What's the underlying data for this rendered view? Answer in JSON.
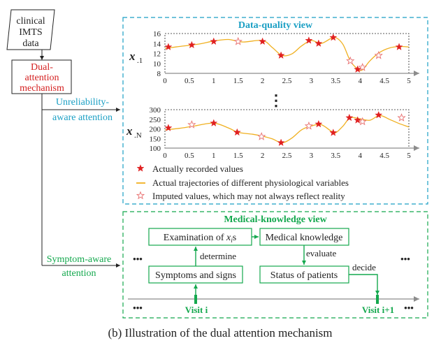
{
  "input": {
    "line1": "clinical",
    "line2": "IMTS",
    "line3": "data"
  },
  "mechanism": {
    "line1": "Dual-",
    "line2": "attention",
    "line3": "mechanism"
  },
  "unreliability": {
    "line1": "Unreliability-",
    "line2": "aware attention"
  },
  "symptom": {
    "line1": "Symptom-aware",
    "line2": "attention"
  },
  "dq_view": {
    "title": "Data-quality view",
    "var1_label": "x",
    "var1_sub": ".1",
    "varN_label": "x",
    "varN_sub": ".N",
    "dots": "⋮"
  },
  "legend": {
    "recorded": "Actually recorded values",
    "trajectory": "Actual trajectories of different physiological variables",
    "imputed": "Imputed values, which may not always reflect reality"
  },
  "mk_view": {
    "title": "Medical-knowledge view",
    "examination_prefix": "Examination of ",
    "examination_var": "x",
    "examination_sub": "i",
    "examination_suffix": "s",
    "knowledge": "Medical knowledge",
    "symptoms": "Symptoms and signs",
    "status": "Status of patients",
    "determine": "determine",
    "evaluate": "evaluate",
    "decide": "decide",
    "visit_i": "Visit i",
    "visit_i1": "Visit i+1",
    "ellipsis": "•••"
  },
  "caption": "(b) Illustration of the dual attention mechanism",
  "colors": {
    "teal": "#1a9fc4",
    "red": "#d42020",
    "green": "#14a84e",
    "curve": "#f0b020",
    "star": "#e02020",
    "star_hollow": "#e87070",
    "axis": "#808080"
  },
  "chart_data": [
    {
      "type": "line",
      "series_label": "x.1",
      "x_ticks": [
        "0",
        "0.5",
        "1",
        "1.5",
        "2",
        "2.5",
        "3",
        "3.5",
        "4",
        "4.5",
        "5"
      ],
      "y_ticks": [
        "8",
        "10",
        "12",
        "14",
        "16"
      ],
      "xlim": [
        0,
        5
      ],
      "ylim": [
        8,
        16
      ],
      "trajectory": [
        [
          0,
          13.0
        ],
        [
          0.3,
          13.4
        ],
        [
          0.7,
          13.9
        ],
        [
          1.0,
          14.5
        ],
        [
          1.3,
          14.8
        ],
        [
          1.6,
          14.3
        ],
        [
          2.0,
          14.6
        ],
        [
          2.2,
          13.2
        ],
        [
          2.4,
          11.6
        ],
        [
          2.6,
          11.9
        ],
        [
          2.8,
          13.5
        ],
        [
          3.0,
          14.6
        ],
        [
          3.2,
          14.0
        ],
        [
          3.4,
          15.0
        ],
        [
          3.5,
          15.2
        ],
        [
          3.65,
          13.8
        ],
        [
          3.8,
          10.5
        ],
        [
          3.95,
          8.9
        ],
        [
          4.05,
          8.7
        ],
        [
          4.2,
          10.5
        ],
        [
          4.4,
          12.2
        ],
        [
          4.6,
          13.1
        ],
        [
          4.8,
          13.4
        ],
        [
          5.0,
          13.3
        ]
      ],
      "recorded": [
        [
          0.07,
          13.3
        ],
        [
          0.55,
          13.7
        ],
        [
          1.0,
          14.4
        ],
        [
          2.0,
          14.4
        ],
        [
          2.38,
          11.6
        ],
        [
          2.95,
          14.6
        ],
        [
          3.15,
          14.0
        ],
        [
          3.45,
          15.2
        ],
        [
          3.95,
          8.8
        ],
        [
          4.8,
          13.3
        ]
      ],
      "imputed": [
        [
          1.5,
          14.4
        ],
        [
          3.8,
          10.5
        ],
        [
          4.05,
          9.2
        ],
        [
          4.38,
          11.6
        ]
      ]
    },
    {
      "type": "line",
      "series_label": "x.N",
      "x_ticks": [
        "0",
        "0.5",
        "1",
        "1.5",
        "2",
        "2.5",
        "3",
        "3.5",
        "4",
        "4.5",
        "5"
      ],
      "y_ticks": [
        "100",
        "150",
        "200",
        "250",
        "300"
      ],
      "xlim": [
        0,
        5
      ],
      "ylim": [
        100,
        300
      ],
      "trajectory": [
        [
          0,
          195
        ],
        [
          0.3,
          203
        ],
        [
          0.6,
          215
        ],
        [
          1.0,
          230
        ],
        [
          1.3,
          205
        ],
        [
          1.5,
          182
        ],
        [
          1.8,
          172
        ],
        [
          2.0,
          162
        ],
        [
          2.2,
          148
        ],
        [
          2.4,
          128
        ],
        [
          2.6,
          152
        ],
        [
          2.8,
          195
        ],
        [
          3.0,
          215
        ],
        [
          3.2,
          222
        ],
        [
          3.4,
          190
        ],
        [
          3.5,
          180
        ],
        [
          3.65,
          215
        ],
        [
          3.8,
          258
        ],
        [
          4.0,
          252
        ],
        [
          4.2,
          245
        ],
        [
          4.4,
          270
        ],
        [
          4.6,
          250
        ],
        [
          4.8,
          228
        ],
        [
          5.0,
          210
        ]
      ],
      "recorded": [
        [
          0.07,
          205
        ],
        [
          1.0,
          230
        ],
        [
          1.48,
          182
        ],
        [
          2.38,
          128
        ],
        [
          3.15,
          225
        ],
        [
          3.45,
          180
        ],
        [
          3.78,
          258
        ],
        [
          3.95,
          245
        ],
        [
          4.38,
          272
        ]
      ],
      "imputed": [
        [
          0.55,
          222
        ],
        [
          1.98,
          160
        ],
        [
          2.95,
          215
        ],
        [
          4.05,
          238
        ],
        [
          4.85,
          258
        ]
      ]
    }
  ]
}
